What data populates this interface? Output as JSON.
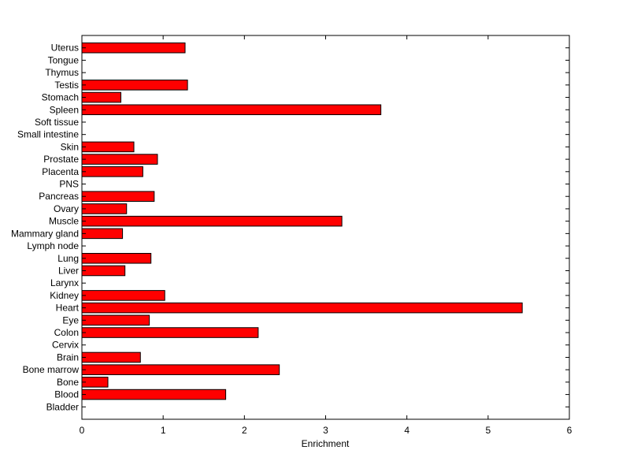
{
  "chart_data": {
    "type": "bar",
    "orientation": "horizontal",
    "categories": [
      "Uterus",
      "Tongue",
      "Thymus",
      "Testis",
      "Stomach",
      "Spleen",
      "Soft tissue",
      "Small intestine",
      "Skin",
      "Prostate",
      "Placenta",
      "PNS",
      "Pancreas",
      "Ovary",
      "Muscle",
      "Mammary gland",
      "Lymph node",
      "Lung",
      "Liver",
      "Larynx",
      "Kidney",
      "Heart",
      "Eye",
      "Colon",
      "Cervix",
      "Brain",
      "Bone marrow",
      "Bone",
      "Blood",
      "Bladder"
    ],
    "values": [
      1.27,
      0,
      0,
      1.3,
      0.48,
      3.68,
      0,
      0,
      0.64,
      0.93,
      0.75,
      0,
      0.89,
      0.55,
      3.2,
      0.5,
      0,
      0.85,
      0.53,
      0,
      1.02,
      5.42,
      0.83,
      2.17,
      0,
      0.72,
      2.43,
      0.32,
      1.77,
      0
    ],
    "xlabel": "Enrichment",
    "ylabel": "",
    "title": "",
    "xlim": [
      0,
      6
    ],
    "xticks": [
      "0",
      "1",
      "2",
      "3",
      "4",
      "5",
      "6"
    ],
    "grid": false,
    "legend": "none",
    "bar_color": "#ff0000",
    "bar_edge_color": "#000000"
  }
}
